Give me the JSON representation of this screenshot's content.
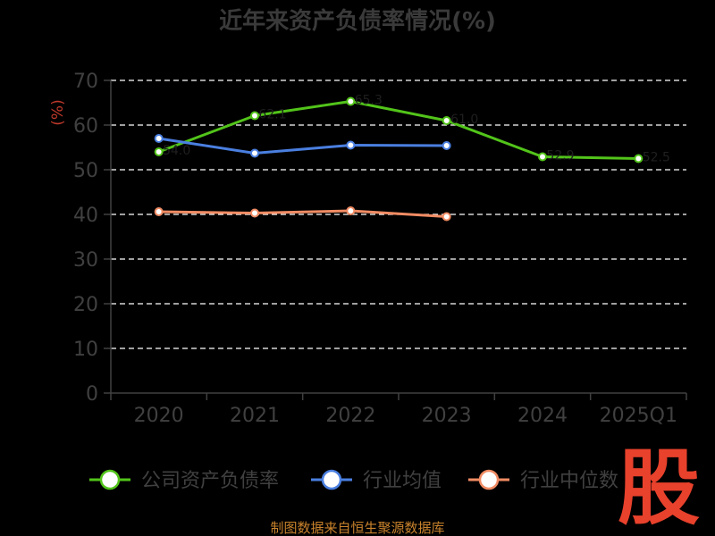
{
  "chart_data": {
    "type": "line",
    "title": "近年来资产负债率情况(%)",
    "ylabel": "(%)",
    "xlabel": "",
    "categories": [
      "2020",
      "2021",
      "2022",
      "2023",
      "2024",
      "2025Q1"
    ],
    "ylim": [
      0,
      70
    ],
    "yticks": [
      0,
      10,
      20,
      30,
      40,
      50,
      60,
      70
    ],
    "grid": true,
    "legend_position": "bottom",
    "series": [
      {
        "name": "公司资产负债率",
        "color": "#52c41a",
        "values": [
          54.0,
          62.1,
          65.3,
          61.0,
          52.9,
          52.5
        ],
        "labels": [
          "54.0",
          "62.1",
          "65.3",
          "61.0",
          "52.9",
          "52.5"
        ]
      },
      {
        "name": "行业均值",
        "color": "#4a7fe0",
        "values": [
          57.0,
          53.7,
          55.5,
          55.4,
          null,
          null
        ]
      },
      {
        "name": "行业中位数",
        "color": "#f08b63",
        "values": [
          40.6,
          40.3,
          40.8,
          39.5,
          null,
          null
        ]
      }
    ]
  },
  "watermark": {
    "text": "股",
    "color": "#e8412c"
  },
  "source": "制图数据来自恒生聚源数据库"
}
